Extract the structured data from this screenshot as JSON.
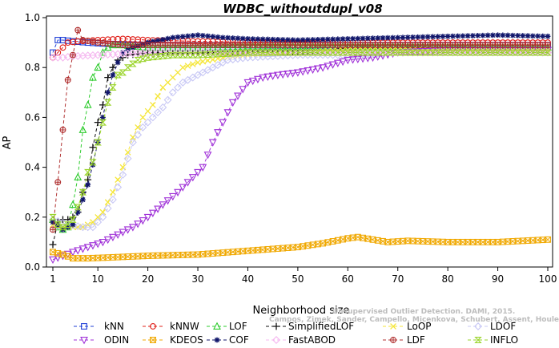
{
  "chart_data": {
    "type": "line",
    "title": "WDBC_withoutdupl_v08",
    "xlabel": "Neighborhood size",
    "ylabel": "AP",
    "xlim": [
      1,
      100
    ],
    "ylim": [
      0,
      1
    ],
    "xticks": [
      1,
      10,
      20,
      30,
      40,
      50,
      60,
      70,
      80,
      90,
      100
    ],
    "yticks": [
      0.0,
      0.2,
      0.4,
      0.6,
      0.8,
      1.0
    ],
    "ytick_labels": [
      "0.0",
      "0.2",
      "0.4",
      "0.6",
      "0.8",
      "1.0"
    ],
    "grid": false,
    "legend_position": "bottom",
    "watermark_lines": [
      "Unsupervised Outlier Detection. DAMI, 2015.",
      "Campos, Zimek, Sander, Campello, Micenkova, Schubert, Assent, Houle"
    ],
    "series": [
      {
        "name": "kNN",
        "color": "#1f3fd6",
        "marker": "square",
        "dash": "4,3",
        "points": [
          [
            1,
            0.86
          ],
          [
            2,
            0.91
          ],
          [
            3,
            0.91
          ],
          [
            5,
            0.905
          ],
          [
            8,
            0.9
          ],
          [
            12,
            0.895
          ],
          [
            20,
            0.89
          ],
          [
            30,
            0.89
          ],
          [
            50,
            0.89
          ],
          [
            70,
            0.89
          ],
          [
            100,
            0.89
          ]
        ]
      },
      {
        "name": "kNNW",
        "color": "#e0201a",
        "marker": "circle",
        "dash": "4,3",
        "points": [
          [
            1,
            0.84
          ],
          [
            2,
            0.86
          ],
          [
            3,
            0.88
          ],
          [
            4,
            0.9
          ],
          [
            6,
            0.905
          ],
          [
            10,
            0.91
          ],
          [
            15,
            0.915
          ],
          [
            20,
            0.91
          ],
          [
            30,
            0.905
          ],
          [
            50,
            0.9
          ],
          [
            100,
            0.9
          ]
        ]
      },
      {
        "name": "LOF",
        "color": "#2ecc2e",
        "marker": "triangle-up",
        "dash": "4,3",
        "points": [
          [
            1,
            0.19
          ],
          [
            2,
            0.16
          ],
          [
            3,
            0.15
          ],
          [
            4,
            0.16
          ],
          [
            5,
            0.25
          ],
          [
            6,
            0.36
          ],
          [
            7,
            0.55
          ],
          [
            8,
            0.65
          ],
          [
            9,
            0.76
          ],
          [
            10,
            0.8
          ],
          [
            11,
            0.86
          ],
          [
            12,
            0.88
          ],
          [
            13,
            0.89
          ],
          [
            15,
            0.89
          ],
          [
            20,
            0.88
          ],
          [
            30,
            0.88
          ],
          [
            40,
            0.885
          ],
          [
            50,
            0.885
          ],
          [
            70,
            0.885
          ],
          [
            100,
            0.88
          ]
        ]
      },
      {
        "name": "SimplifiedLOF",
        "color": "#111111",
        "marker": "plus",
        "dash": "4,3",
        "points": [
          [
            1,
            0.09
          ],
          [
            2,
            0.18
          ],
          [
            3,
            0.19
          ],
          [
            4,
            0.19
          ],
          [
            5,
            0.2
          ],
          [
            6,
            0.22
          ],
          [
            7,
            0.3
          ],
          [
            8,
            0.35
          ],
          [
            9,
            0.48
          ],
          [
            10,
            0.58
          ],
          [
            11,
            0.65
          ],
          [
            12,
            0.76
          ],
          [
            13,
            0.8
          ],
          [
            14,
            0.83
          ],
          [
            16,
            0.85
          ],
          [
            20,
            0.86
          ],
          [
            25,
            0.86
          ],
          [
            30,
            0.86
          ],
          [
            40,
            0.86
          ],
          [
            50,
            0.865
          ],
          [
            56,
            0.87
          ],
          [
            60,
            0.88
          ],
          [
            70,
            0.88
          ],
          [
            100,
            0.88
          ]
        ]
      },
      {
        "name": "LoOP",
        "color": "#f5e63a",
        "marker": "cross",
        "dash": "4,3",
        "points": [
          [
            1,
            0.17
          ],
          [
            4,
            0.16
          ],
          [
            7,
            0.16
          ],
          [
            9,
            0.18
          ],
          [
            11,
            0.22
          ],
          [
            13,
            0.3
          ],
          [
            15,
            0.4
          ],
          [
            17,
            0.52
          ],
          [
            19,
            0.6
          ],
          [
            21,
            0.65
          ],
          [
            23,
            0.72
          ],
          [
            25,
            0.76
          ],
          [
            27,
            0.8
          ],
          [
            30,
            0.82
          ],
          [
            35,
            0.84
          ],
          [
            40,
            0.85
          ],
          [
            50,
            0.86
          ],
          [
            60,
            0.87
          ],
          [
            70,
            0.87
          ],
          [
            100,
            0.87
          ]
        ]
      },
      {
        "name": "LDOF",
        "color": "#c8c8f5",
        "marker": "diamond",
        "dash": "4,3",
        "points": [
          [
            1,
            0.19
          ],
          [
            4,
            0.17
          ],
          [
            7,
            0.16
          ],
          [
            9,
            0.16
          ],
          [
            11,
            0.2
          ],
          [
            13,
            0.27
          ],
          [
            15,
            0.37
          ],
          [
            17,
            0.5
          ],
          [
            19,
            0.56
          ],
          [
            21,
            0.6
          ],
          [
            23,
            0.64
          ],
          [
            25,
            0.7
          ],
          [
            27,
            0.74
          ],
          [
            29,
            0.76
          ],
          [
            32,
            0.79
          ],
          [
            36,
            0.83
          ],
          [
            40,
            0.84
          ],
          [
            50,
            0.85
          ],
          [
            60,
            0.85
          ],
          [
            70,
            0.86
          ],
          [
            80,
            0.86
          ],
          [
            100,
            0.86
          ]
        ]
      },
      {
        "name": "ODIN",
        "color": "#a032d8",
        "marker": "triangle-down",
        "dash": "4,3",
        "points": [
          [
            1,
            0.03
          ],
          [
            3,
            0.045
          ],
          [
            5,
            0.06
          ],
          [
            8,
            0.08
          ],
          [
            11,
            0.1
          ],
          [
            14,
            0.13
          ],
          [
            17,
            0.16
          ],
          [
            20,
            0.2
          ],
          [
            23,
            0.25
          ],
          [
            26,
            0.3
          ],
          [
            29,
            0.36
          ],
          [
            31,
            0.4
          ],
          [
            33,
            0.5
          ],
          [
            35,
            0.58
          ],
          [
            37,
            0.66
          ],
          [
            40,
            0.74
          ],
          [
            43,
            0.76
          ],
          [
            46,
            0.77
          ],
          [
            50,
            0.78
          ],
          [
            55,
            0.8
          ],
          [
            60,
            0.83
          ],
          [
            65,
            0.84
          ],
          [
            70,
            0.86
          ],
          [
            80,
            0.87
          ],
          [
            100,
            0.87
          ]
        ]
      },
      {
        "name": "KDEOS",
        "color": "#f0a800",
        "marker": "square-x",
        "dash": "4,3",
        "points": [
          [
            1,
            0.06
          ],
          [
            3,
            0.05
          ],
          [
            5,
            0.035
          ],
          [
            8,
            0.035
          ],
          [
            12,
            0.038
          ],
          [
            20,
            0.045
          ],
          [
            30,
            0.05
          ],
          [
            40,
            0.065
          ],
          [
            50,
            0.08
          ],
          [
            55,
            0.095
          ],
          [
            60,
            0.115
          ],
          [
            62,
            0.12
          ],
          [
            65,
            0.11
          ],
          [
            68,
            0.1
          ],
          [
            72,
            0.105
          ],
          [
            80,
            0.1
          ],
          [
            90,
            0.1
          ],
          [
            95,
            0.105
          ],
          [
            100,
            0.11
          ]
        ]
      },
      {
        "name": "COF",
        "color": "#10166b",
        "marker": "star",
        "dash": "4,3",
        "points": [
          [
            1,
            0.18
          ],
          [
            3,
            0.15
          ],
          [
            5,
            0.17
          ],
          [
            6,
            0.22
          ],
          [
            7,
            0.27
          ],
          [
            8,
            0.33
          ],
          [
            9,
            0.41
          ],
          [
            10,
            0.5
          ],
          [
            11,
            0.6
          ],
          [
            12,
            0.7
          ],
          [
            13,
            0.77
          ],
          [
            14,
            0.82
          ],
          [
            15,
            0.86
          ],
          [
            17,
            0.88
          ],
          [
            20,
            0.9
          ],
          [
            25,
            0.92
          ],
          [
            30,
            0.93
          ],
          [
            35,
            0.92
          ],
          [
            40,
            0.915
          ],
          [
            50,
            0.91
          ],
          [
            60,
            0.915
          ],
          [
            70,
            0.92
          ],
          [
            80,
            0.925
          ],
          [
            90,
            0.93
          ],
          [
            100,
            0.925
          ]
        ]
      },
      {
        "name": "FastABOD",
        "color": "#f5b8f0",
        "marker": "diamond",
        "dash": "4,3",
        "points": [
          [
            1,
            0.84
          ],
          [
            3,
            0.84
          ],
          [
            5,
            0.845
          ],
          [
            10,
            0.85
          ],
          [
            20,
            0.86
          ],
          [
            30,
            0.86
          ],
          [
            50,
            0.86
          ],
          [
            70,
            0.86
          ],
          [
            100,
            0.86
          ]
        ]
      },
      {
        "name": "LDF",
        "color": "#b03030",
        "marker": "circle-plus",
        "dash": "4,3",
        "points": [
          [
            1,
            0.15
          ],
          [
            2,
            0.34
          ],
          [
            3,
            0.55
          ],
          [
            4,
            0.75
          ],
          [
            5,
            0.85
          ],
          [
            6,
            0.95
          ],
          [
            7,
            0.91
          ],
          [
            10,
            0.9
          ],
          [
            15,
            0.89
          ],
          [
            20,
            0.89
          ],
          [
            30,
            0.89
          ],
          [
            50,
            0.89
          ],
          [
            100,
            0.89
          ]
        ]
      },
      {
        "name": "INFLO",
        "color": "#9ad42a",
        "marker": "hourglass",
        "dash": "4,3",
        "points": [
          [
            1,
            0.2
          ],
          [
            2,
            0.17
          ],
          [
            3,
            0.16
          ],
          [
            4,
            0.17
          ],
          [
            5,
            0.19
          ],
          [
            6,
            0.24
          ],
          [
            7,
            0.3
          ],
          [
            8,
            0.38
          ],
          [
            9,
            0.42
          ],
          [
            10,
            0.5
          ],
          [
            11,
            0.58
          ],
          [
            12,
            0.66
          ],
          [
            13,
            0.72
          ],
          [
            14,
            0.77
          ],
          [
            15,
            0.78
          ],
          [
            16,
            0.8
          ],
          [
            18,
            0.83
          ],
          [
            20,
            0.84
          ],
          [
            25,
            0.85
          ],
          [
            30,
            0.85
          ],
          [
            40,
            0.86
          ],
          [
            60,
            0.86
          ],
          [
            100,
            0.86
          ]
        ]
      }
    ],
    "legend_rows": [
      [
        "kNN",
        "kNNW",
        "LOF",
        "SimplifiedLOF",
        "LoOP",
        "LDOF"
      ],
      [
        "ODIN",
        "KDEOS",
        "COF",
        "FastABOD",
        "LDF",
        "INFLO"
      ]
    ]
  }
}
